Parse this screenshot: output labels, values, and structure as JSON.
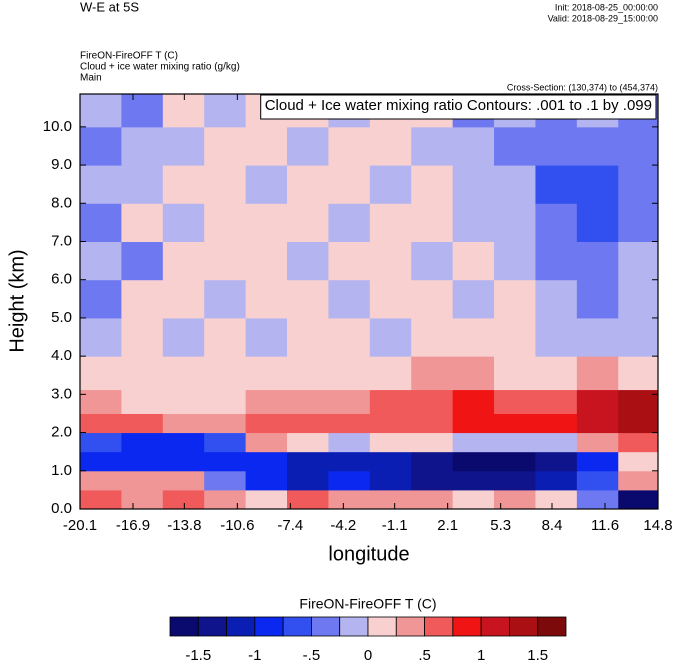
{
  "chart_data": {
    "type": "heatmap",
    "title": "W-E at 5S",
    "init_label": "Init: 2018-08-25_00:00:00",
    "valid_label": "Valid: 2018-08-29_15:00:00",
    "field_label": "FireON-FireOFF T   (C)",
    "contour_field_label": "Cloud + ice water mixing ratio   (g/kg)",
    "domain_label": "Main",
    "cross_section_label": "Cross-Section: (130,374) to (454,374)",
    "contour_info": "Cloud + Ice water mixing ratio Contours: .001 to .1 by .099",
    "xlabel": "longitude",
    "ylabel": "Height (km)",
    "xlim": [
      -20.1,
      14.8
    ],
    "ylim": [
      0,
      10.86
    ],
    "xticks": [
      -20.1,
      -16.9,
      -13.8,
      -10.6,
      -7.4,
      -4.2,
      -1.1,
      2.1,
      5.3,
      8.4,
      11.6,
      14.8
    ],
    "yticks": [
      {
        "value": 0,
        "label": "0.0"
      },
      {
        "value": 1,
        "label": "1.0"
      },
      {
        "value": 2,
        "label": "2.0"
      },
      {
        "value": 3,
        "label": "3.0"
      },
      {
        "value": 4,
        "label": "4.0"
      },
      {
        "value": 5,
        "label": "5.0"
      },
      {
        "value": 6,
        "label": "6.0"
      },
      {
        "value": 7,
        "label": "7.0"
      },
      {
        "value": 8,
        "label": "8.0"
      },
      {
        "value": 9,
        "label": "9.0"
      },
      {
        "value": 10,
        "label": "10.0"
      }
    ],
    "x": [
      -18.85,
      -16.35,
      -13.85,
      -11.35,
      -8.85,
      -6.35,
      -3.85,
      -1.35,
      1.15,
      3.65,
      6.15,
      8.65,
      11.15,
      13.65
    ],
    "y": [
      0.25,
      0.75,
      1.25,
      1.75,
      2.25,
      2.75,
      3.5,
      4.5,
      5.5,
      6.5,
      7.5,
      8.5,
      9.5,
      10.5
    ],
    "z": [
      [
        0.6,
        0.3,
        0.6,
        0.3,
        0.1,
        0.6,
        0.3,
        0.3,
        0.3,
        0.1,
        0.3,
        0.1,
        -0.3,
        -1.6
      ],
      [
        0.3,
        0.3,
        0.3,
        -0.3,
        -0.9,
        -1.1,
        -0.9,
        -1.1,
        -1.3,
        -1.3,
        -1.4,
        -1.1,
        -0.6,
        0.3
      ],
      [
        -0.9,
        -0.9,
        -0.9,
        -0.9,
        -1.0,
        -1.1,
        -1.1,
        -1.2,
        -1.4,
        -1.6,
        -1.6,
        -1.4,
        -0.9,
        0.1
      ],
      [
        -0.6,
        -1.0,
        -0.9,
        -0.6,
        0.3,
        0.1,
        -0.1,
        0.1,
        0.1,
        -0.1,
        -0.1,
        -0.1,
        0.3,
        0.6
      ],
      [
        0.6,
        0.6,
        0.3,
        0.3,
        0.6,
        0.6,
        0.6,
        0.6,
        0.6,
        0.9,
        0.9,
        0.9,
        1.1,
        1.3
      ],
      [
        0.3,
        0.1,
        0.1,
        0.1,
        0.3,
        0.3,
        0.3,
        0.6,
        0.6,
        0.9,
        0.6,
        0.6,
        1.1,
        1.3
      ],
      [
        0.1,
        0.1,
        0.1,
        0.1,
        0.1,
        0.1,
        0.1,
        0.1,
        0.3,
        0.3,
        0.1,
        0.1,
        0.3,
        0.1
      ],
      [
        -0.1,
        0.1,
        -0.1,
        0.1,
        -0.1,
        0.1,
        0.1,
        -0.1,
        0.1,
        0.1,
        0.1,
        -0.1,
        -0.1,
        -0.1
      ],
      [
        -0.3,
        0.1,
        0.1,
        -0.1,
        0.1,
        0.1,
        -0.1,
        0.1,
        0.1,
        -0.1,
        0.1,
        -0.1,
        -0.3,
        -0.1
      ],
      [
        -0.1,
        -0.3,
        0.1,
        0.1,
        0.1,
        -0.1,
        0.1,
        0.1,
        -0.1,
        0.1,
        -0.1,
        -0.3,
        -0.3,
        -0.1
      ],
      [
        -0.3,
        0.1,
        -0.1,
        0.1,
        0.1,
        0.1,
        -0.1,
        0.1,
        0.1,
        -0.1,
        -0.1,
        -0.3,
        -0.6,
        -0.3
      ],
      [
        -0.1,
        -0.1,
        0.1,
        0.1,
        -0.1,
        0.1,
        0.1,
        -0.1,
        0.1,
        -0.1,
        -0.1,
        -0.6,
        -0.6,
        -0.3
      ],
      [
        -0.3,
        -0.1,
        -0.1,
        0.1,
        0.1,
        -0.1,
        0.1,
        0.1,
        -0.1,
        -0.1,
        -0.3,
        -0.3,
        -0.3,
        -0.3
      ],
      [
        -0.1,
        -0.3,
        0.1,
        -0.1,
        0.1,
        0.1,
        -0.1,
        0.1,
        0.1,
        -0.3,
        -0.1,
        -0.3,
        -0.1,
        -0.3
      ]
    ],
    "colorbar_title": "FireON-FireOFF T  (C)",
    "levels": [
      {
        "value": -1.5,
        "label": "-1.5"
      },
      -1.25,
      {
        "value": -1,
        "label": "-1"
      },
      -0.75,
      {
        "value": -0.5,
        "label": "-.5"
      },
      -0.25,
      {
        "value": 0,
        "label": "0"
      },
      0.25,
      {
        "value": 0.5,
        "label": ".5"
      },
      0.75,
      {
        "value": 1,
        "label": "1"
      },
      1.25,
      {
        "value": 1.5,
        "label": "1.5"
      }
    ],
    "colors": [
      "#0a0a6e",
      "#0f148c",
      "#0a1eb4",
      "#0a28f0",
      "#3250f0",
      "#6e78f0",
      "#b4b4f0",
      "#f8d0d0",
      "#f09696",
      "#f05a5a",
      "#f01414",
      "#c8141e",
      "#aa0f14",
      "#7d0a0a"
    ]
  }
}
